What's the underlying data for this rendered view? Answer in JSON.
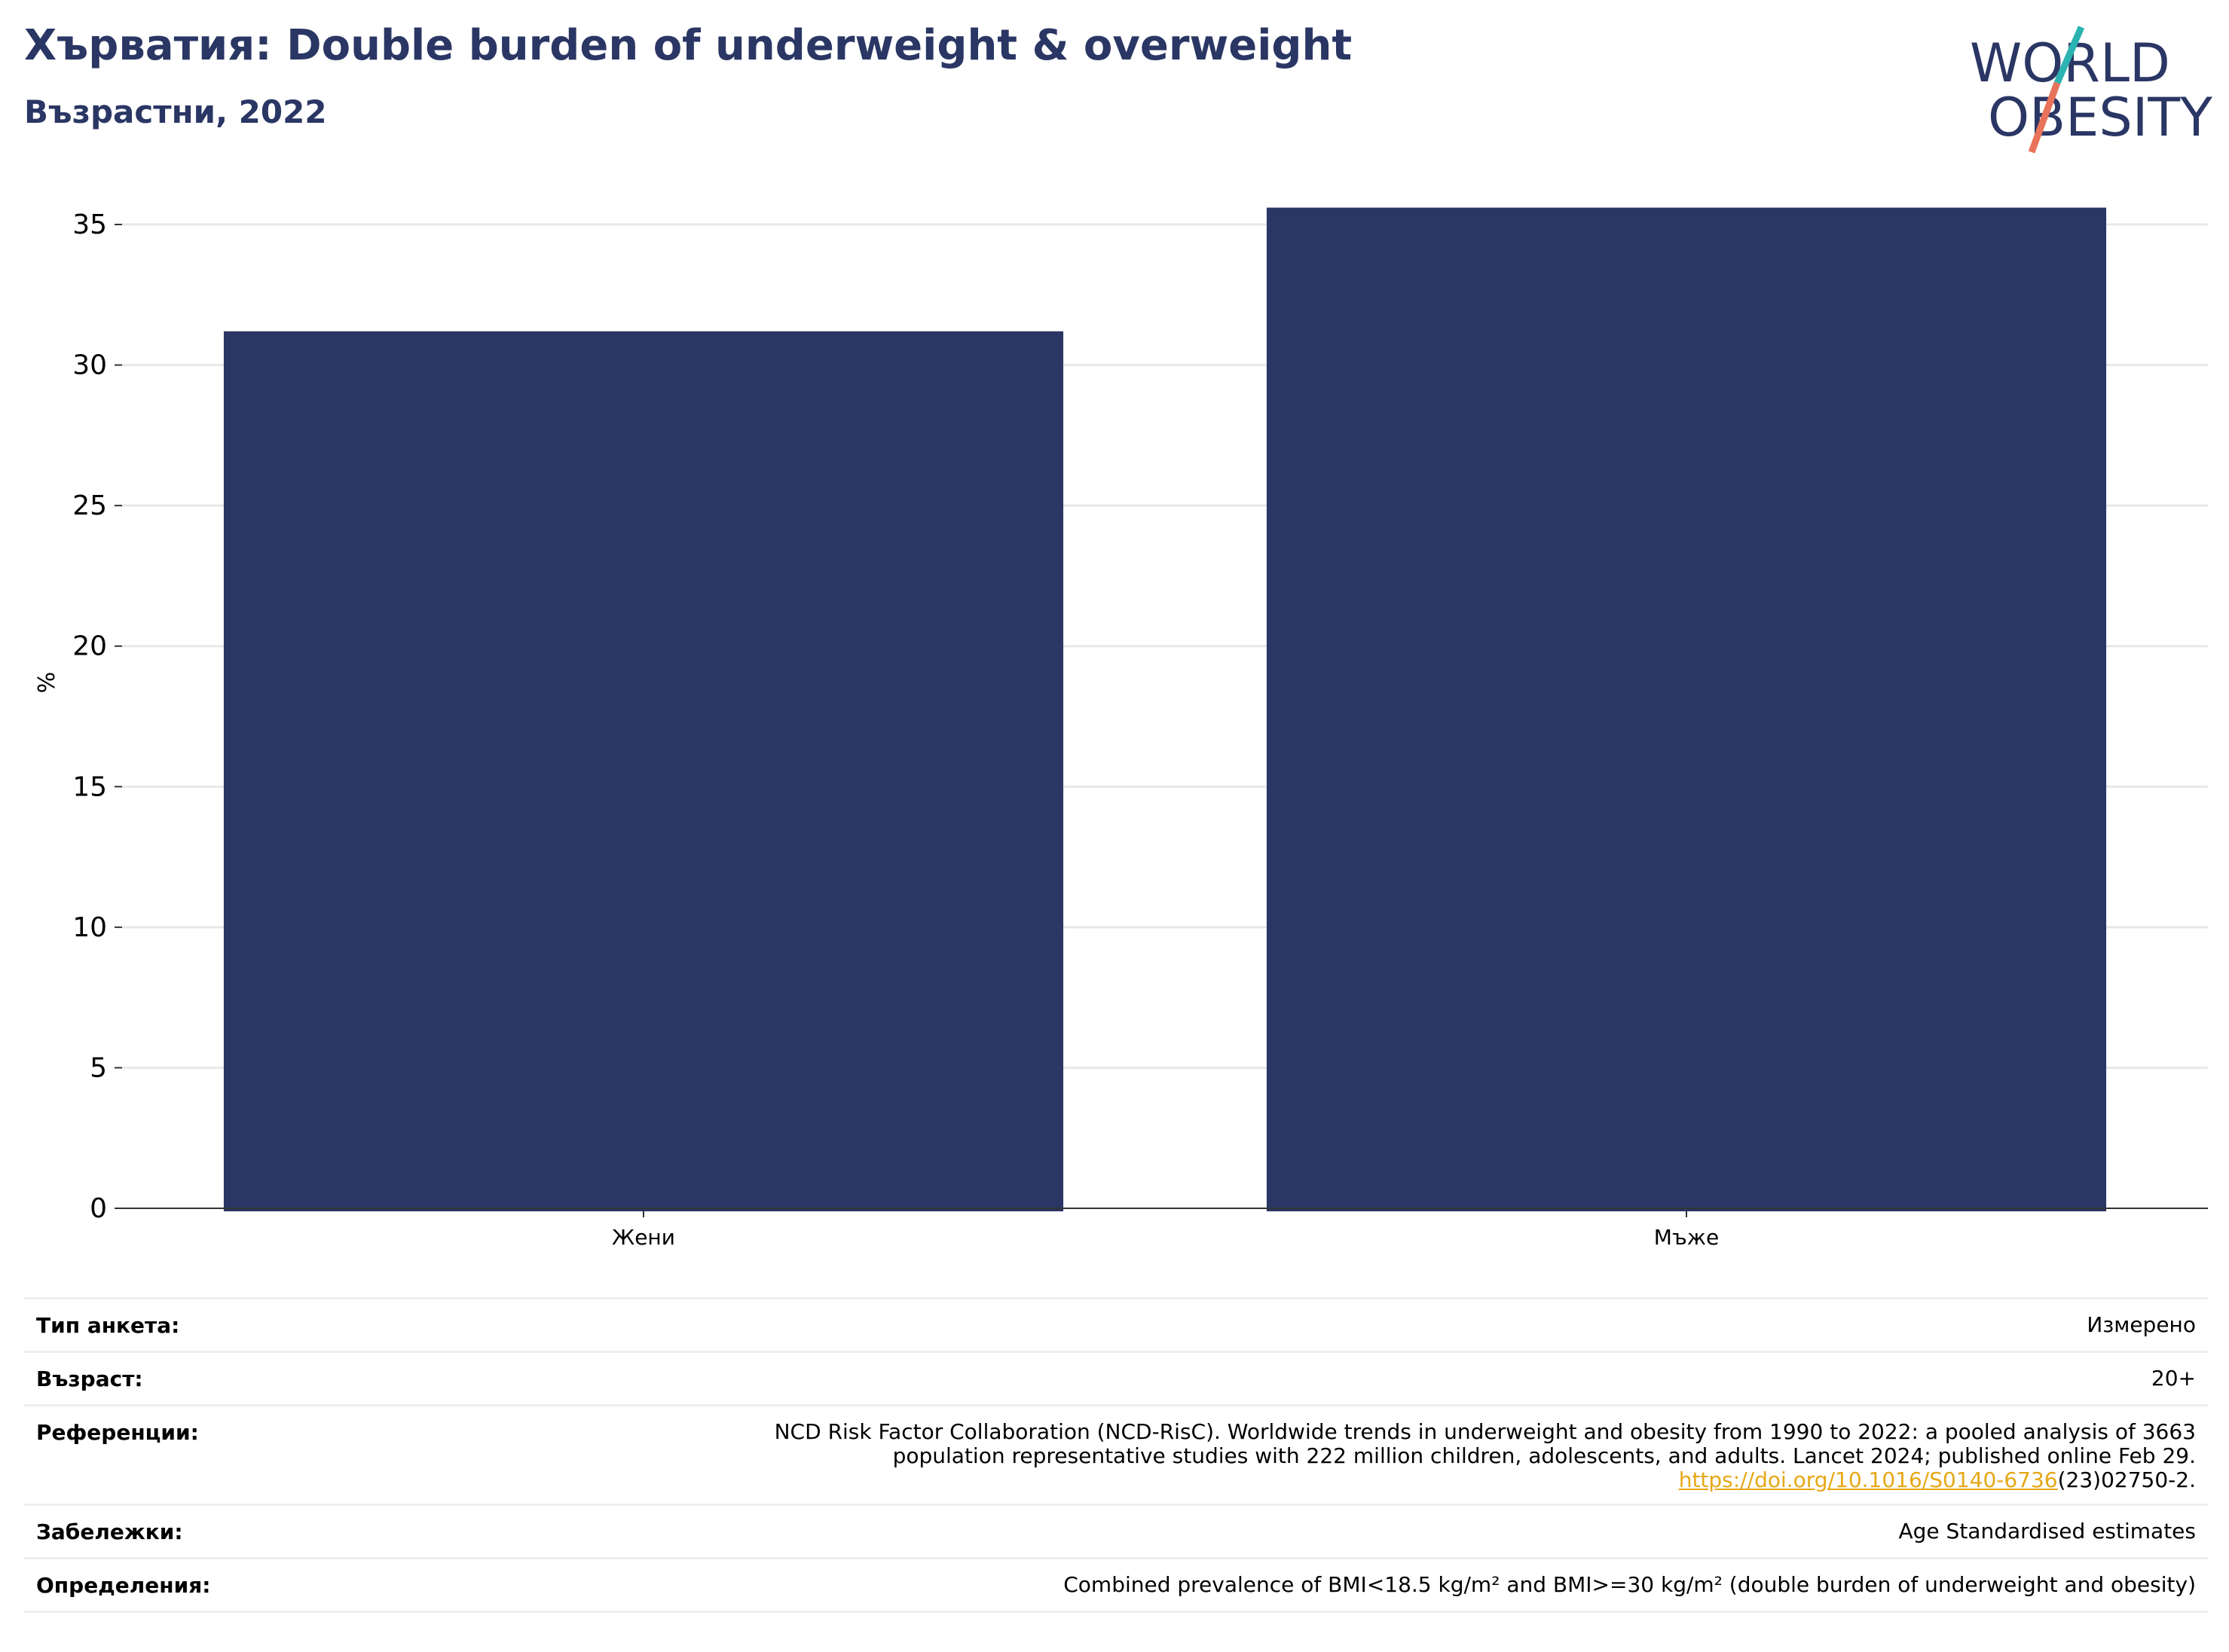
{
  "header": {
    "title": "Хърватия: Double burden of underweight & overweight",
    "subtitle": "Възрастни, 2022"
  },
  "logo": {
    "line1": "WORLD",
    "line2": "OBESITY",
    "colors": {
      "text": "#2a3664",
      "slash_top": "#2bb3b1",
      "slash_bottom": "#e8735a"
    }
  },
  "chart_data": {
    "type": "bar",
    "categories": [
      "Жени",
      "Мъже"
    ],
    "values": [
      31.2,
      35.6
    ],
    "title": "",
    "xlabel": "",
    "ylabel": "%",
    "ylim": [
      0,
      37
    ],
    "yticks": [
      0,
      5,
      10,
      15,
      20,
      25,
      30,
      35
    ],
    "grid": true,
    "bar_color": "#2a3664"
  },
  "info": {
    "survey_type": {
      "label": "Тип анкета:",
      "value": "Измерено"
    },
    "age": {
      "label": "Възраст:",
      "value": "20+"
    },
    "references": {
      "label": "Референции:",
      "line1": "NCD Risk Factor Collaboration (NCD-RisC). Worldwide trends in underweight and obesity from 1990 to 2022: a pooled analysis of 3663",
      "line2": "population representative studies with 222 million children, adolescents, and adults. Lancet 2024; published online Feb 29.",
      "link": "https://doi.org/10.1016/S0140-6736",
      "link_suffix": "(23)02750-2."
    },
    "notes": {
      "label": "Забележки:",
      "value": "Age Standardised estimates"
    },
    "definitions": {
      "label": "Определения:",
      "value": "Combined prevalence of BMI<18.5 kg/m² and BMI>=30 kg/m² (double burden of underweight and obesity)"
    }
  }
}
